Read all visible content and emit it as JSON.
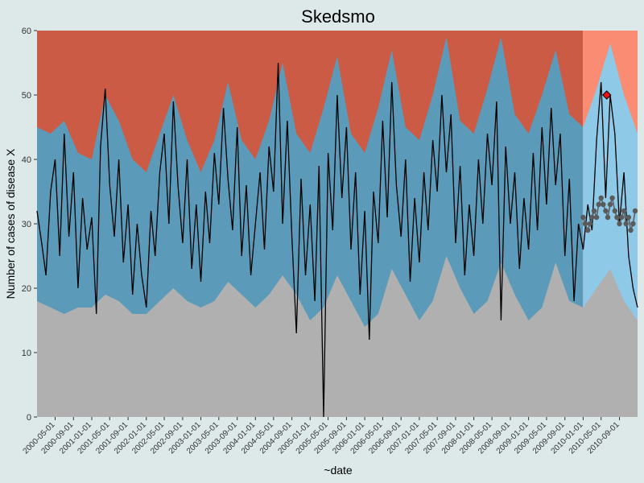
{
  "chart_data": {
    "type": "area",
    "title": "Skedsmo",
    "xlabel": "~date",
    "ylabel": "Number of cases of disease X",
    "ylim": [
      0,
      60
    ],
    "y_ticks": [
      0,
      10,
      20,
      30,
      40,
      50,
      60
    ],
    "x_range": [
      "2000-01-01",
      "2010-12-31"
    ],
    "x_tick_labels": [
      "2000-05-01",
      "2000-09-01",
      "2001-01-01",
      "2001-05-01",
      "2001-09-01",
      "2002-01-01",
      "2002-05-01",
      "2002-09-01",
      "2003-01-01",
      "2003-05-01",
      "2003-09-01",
      "2004-01-01",
      "2004-05-01",
      "2004-09-01",
      "2005-01-01",
      "2005-05-01",
      "2005-09-01",
      "2006-01-01",
      "2006-05-01",
      "2006-09-01",
      "2007-01-01",
      "2007-05-01",
      "2007-09-01",
      "2008-01-01",
      "2008-05-01",
      "2008-09-01",
      "2009-01-01",
      "2009-05-01",
      "2009-09-01",
      "2010-01-01",
      "2010-05-01",
      "2010-09-01"
    ],
    "baseline_end": "2009-12-31",
    "grid": false,
    "legend": "none",
    "colors": {
      "upper_band": "#cb5b45",
      "upper_band_current": "#fa8c74",
      "normal_band": "#5b9ab8",
      "normal_band_current": "#8ec9e8",
      "lower_band": "#b0b0b0",
      "observed_line": "#000000",
      "expected_points": "#5a5a5a",
      "alert_point": "#ee1111"
    },
    "bands": {
      "lower_threshold": [
        {
          "x": "2000-01-01",
          "y": 18
        },
        {
          "x": "2000-04-01",
          "y": 17
        },
        {
          "x": "2000-07-01",
          "y": 16
        },
        {
          "x": "2000-10-01",
          "y": 17
        },
        {
          "x": "2001-01-01",
          "y": 17
        },
        {
          "x": "2001-04-01",
          "y": 19
        },
        {
          "x": "2001-07-01",
          "y": 18
        },
        {
          "x": "2001-10-01",
          "y": 16
        },
        {
          "x": "2002-01-01",
          "y": 16
        },
        {
          "x": "2002-04-01",
          "y": 18
        },
        {
          "x": "2002-07-01",
          "y": 20
        },
        {
          "x": "2002-10-01",
          "y": 18
        },
        {
          "x": "2003-01-01",
          "y": 17
        },
        {
          "x": "2003-04-01",
          "y": 18
        },
        {
          "x": "2003-07-01",
          "y": 21
        },
        {
          "x": "2003-10-01",
          "y": 19
        },
        {
          "x": "2004-01-01",
          "y": 17
        },
        {
          "x": "2004-04-01",
          "y": 19
        },
        {
          "x": "2004-07-01",
          "y": 22
        },
        {
          "x": "2004-10-01",
          "y": 19
        },
        {
          "x": "2005-01-01",
          "y": 15
        },
        {
          "x": "2005-04-01",
          "y": 17
        },
        {
          "x": "2005-07-01",
          "y": 22
        },
        {
          "x": "2005-10-01",
          "y": 18
        },
        {
          "x": "2006-01-01",
          "y": 14
        },
        {
          "x": "2006-04-01",
          "y": 16
        },
        {
          "x": "2006-07-01",
          "y": 23
        },
        {
          "x": "2006-10-01",
          "y": 19
        },
        {
          "x": "2007-01-01",
          "y": 15
        },
        {
          "x": "2007-04-01",
          "y": 18
        },
        {
          "x": "2007-07-01",
          "y": 25
        },
        {
          "x": "2007-10-01",
          "y": 20
        },
        {
          "x": "2008-01-01",
          "y": 16
        },
        {
          "x": "2008-04-01",
          "y": 18
        },
        {
          "x": "2008-07-01",
          "y": 24
        },
        {
          "x": "2008-10-01",
          "y": 19
        },
        {
          "x": "2009-01-01",
          "y": 15
        },
        {
          "x": "2009-04-01",
          "y": 17
        },
        {
          "x": "2009-07-01",
          "y": 24
        },
        {
          "x": "2009-10-01",
          "y": 18
        },
        {
          "x": "2010-01-01",
          "y": 17
        },
        {
          "x": "2010-04-01",
          "y": 20
        },
        {
          "x": "2010-07-01",
          "y": 23
        },
        {
          "x": "2010-10-01",
          "y": 18
        },
        {
          "x": "2010-12-31",
          "y": 15
        }
      ],
      "upper_threshold": [
        {
          "x": "2000-01-01",
          "y": 45
        },
        {
          "x": "2000-04-01",
          "y": 44
        },
        {
          "x": "2000-07-01",
          "y": 46
        },
        {
          "x": "2000-10-01",
          "y": 41
        },
        {
          "x": "2001-01-01",
          "y": 40
        },
        {
          "x": "2001-04-01",
          "y": 50
        },
        {
          "x": "2001-07-01",
          "y": 46
        },
        {
          "x": "2001-10-01",
          "y": 40
        },
        {
          "x": "2002-01-01",
          "y": 38
        },
        {
          "x": "2002-04-01",
          "y": 44
        },
        {
          "x": "2002-07-01",
          "y": 50
        },
        {
          "x": "2002-10-01",
          "y": 43
        },
        {
          "x": "2003-01-01",
          "y": 38
        },
        {
          "x": "2003-04-01",
          "y": 43
        },
        {
          "x": "2003-07-01",
          "y": 52
        },
        {
          "x": "2003-10-01",
          "y": 43
        },
        {
          "x": "2004-01-01",
          "y": 40
        },
        {
          "x": "2004-04-01",
          "y": 46
        },
        {
          "x": "2004-07-01",
          "y": 55
        },
        {
          "x": "2004-10-01",
          "y": 44
        },
        {
          "x": "2005-01-01",
          "y": 41
        },
        {
          "x": "2005-04-01",
          "y": 48
        },
        {
          "x": "2005-07-01",
          "y": 56
        },
        {
          "x": "2005-10-01",
          "y": 44
        },
        {
          "x": "2006-01-01",
          "y": 41
        },
        {
          "x": "2006-04-01",
          "y": 48
        },
        {
          "x": "2006-07-01",
          "y": 57
        },
        {
          "x": "2006-10-01",
          "y": 45
        },
        {
          "x": "2007-01-01",
          "y": 43
        },
        {
          "x": "2007-04-01",
          "y": 50
        },
        {
          "x": "2007-07-01",
          "y": 59
        },
        {
          "x": "2007-10-01",
          "y": 46
        },
        {
          "x": "2008-01-01",
          "y": 44
        },
        {
          "x": "2008-04-01",
          "y": 51
        },
        {
          "x": "2008-07-01",
          "y": 59
        },
        {
          "x": "2008-10-01",
          "y": 47
        },
        {
          "x": "2009-01-01",
          "y": 44
        },
        {
          "x": "2009-04-01",
          "y": 50
        },
        {
          "x": "2009-07-01",
          "y": 57
        },
        {
          "x": "2009-10-01",
          "y": 47
        },
        {
          "x": "2010-01-01",
          "y": 45
        },
        {
          "x": "2010-04-01",
          "y": 51
        },
        {
          "x": "2010-07-01",
          "y": 58
        },
        {
          "x": "2010-10-01",
          "y": 50
        },
        {
          "x": "2010-12-31",
          "y": 44
        }
      ]
    },
    "series": [
      {
        "name": "",
        "role": "observed",
        "points": [
          {
            "x": "2000-01-01",
            "y": 32
          },
          {
            "x": "2000-02-01",
            "y": 27
          },
          {
            "x": "2000-03-01",
            "y": 22
          },
          {
            "x": "2000-04-01",
            "y": 35
          },
          {
            "x": "2000-05-01",
            "y": 40
          },
          {
            "x": "2000-06-01",
            "y": 25
          },
          {
            "x": "2000-07-01",
            "y": 44
          },
          {
            "x": "2000-08-01",
            "y": 28
          },
          {
            "x": "2000-09-01",
            "y": 38
          },
          {
            "x": "2000-10-01",
            "y": 20
          },
          {
            "x": "2000-11-01",
            "y": 34
          },
          {
            "x": "2000-12-01",
            "y": 26
          },
          {
            "x": "2001-01-01",
            "y": 31
          },
          {
            "x": "2001-02-01",
            "y": 16
          },
          {
            "x": "2001-03-01",
            "y": 42
          },
          {
            "x": "2001-04-01",
            "y": 51
          },
          {
            "x": "2001-05-01",
            "y": 36
          },
          {
            "x": "2001-06-01",
            "y": 28
          },
          {
            "x": "2001-07-01",
            "y": 40
          },
          {
            "x": "2001-08-01",
            "y": 24
          },
          {
            "x": "2001-09-01",
            "y": 33
          },
          {
            "x": "2001-10-01",
            "y": 19
          },
          {
            "x": "2001-11-01",
            "y": 30
          },
          {
            "x": "2001-12-01",
            "y": 22
          },
          {
            "x": "2002-01-01",
            "y": 17
          },
          {
            "x": "2002-02-01",
            "y": 32
          },
          {
            "x": "2002-03-01",
            "y": 25
          },
          {
            "x": "2002-04-01",
            "y": 38
          },
          {
            "x": "2002-05-01",
            "y": 44
          },
          {
            "x": "2002-06-01",
            "y": 30
          },
          {
            "x": "2002-07-01",
            "y": 49
          },
          {
            "x": "2002-08-01",
            "y": 36
          },
          {
            "x": "2002-09-01",
            "y": 27
          },
          {
            "x": "2002-10-01",
            "y": 40
          },
          {
            "x": "2002-11-01",
            "y": 23
          },
          {
            "x": "2002-12-01",
            "y": 33
          },
          {
            "x": "2003-01-01",
            "y": 21
          },
          {
            "x": "2003-02-01",
            "y": 35
          },
          {
            "x": "2003-03-01",
            "y": 27
          },
          {
            "x": "2003-04-01",
            "y": 41
          },
          {
            "x": "2003-05-01",
            "y": 33
          },
          {
            "x": "2003-06-01",
            "y": 48
          },
          {
            "x": "2003-07-01",
            "y": 37
          },
          {
            "x": "2003-08-01",
            "y": 29
          },
          {
            "x": "2003-09-01",
            "y": 45
          },
          {
            "x": "2003-10-01",
            "y": 25
          },
          {
            "x": "2003-11-01",
            "y": 36
          },
          {
            "x": "2003-12-01",
            "y": 22
          },
          {
            "x": "2004-01-01",
            "y": 30
          },
          {
            "x": "2004-02-01",
            "y": 38
          },
          {
            "x": "2004-03-01",
            "y": 26
          },
          {
            "x": "2004-04-01",
            "y": 42
          },
          {
            "x": "2004-05-01",
            "y": 35
          },
          {
            "x": "2004-06-01",
            "y": 55
          },
          {
            "x": "2004-07-01",
            "y": 30
          },
          {
            "x": "2004-08-01",
            "y": 46
          },
          {
            "x": "2004-09-01",
            "y": 28
          },
          {
            "x": "2004-10-01",
            "y": 13
          },
          {
            "x": "2004-11-01",
            "y": 37
          },
          {
            "x": "2004-12-01",
            "y": 22
          },
          {
            "x": "2005-01-01",
            "y": 33
          },
          {
            "x": "2005-02-01",
            "y": 18
          },
          {
            "x": "2005-03-01",
            "y": 39
          },
          {
            "x": "2005-04-01",
            "y": 0
          },
          {
            "x": "2005-05-01",
            "y": 41
          },
          {
            "x": "2005-06-01",
            "y": 29
          },
          {
            "x": "2005-07-01",
            "y": 50
          },
          {
            "x": "2005-08-01",
            "y": 34
          },
          {
            "x": "2005-09-01",
            "y": 45
          },
          {
            "x": "2005-10-01",
            "y": 26
          },
          {
            "x": "2005-11-01",
            "y": 38
          },
          {
            "x": "2005-12-01",
            "y": 19
          },
          {
            "x": "2006-01-01",
            "y": 32
          },
          {
            "x": "2006-02-01",
            "y": 12
          },
          {
            "x": "2006-03-01",
            "y": 35
          },
          {
            "x": "2006-04-01",
            "y": 27
          },
          {
            "x": "2006-05-01",
            "y": 46
          },
          {
            "x": "2006-06-01",
            "y": 31
          },
          {
            "x": "2006-07-01",
            "y": 52
          },
          {
            "x": "2006-08-01",
            "y": 36
          },
          {
            "x": "2006-09-01",
            "y": 28
          },
          {
            "x": "2006-10-01",
            "y": 40
          },
          {
            "x": "2006-11-01",
            "y": 21
          },
          {
            "x": "2006-12-01",
            "y": 34
          },
          {
            "x": "2007-01-01",
            "y": 24
          },
          {
            "x": "2007-02-01",
            "y": 38
          },
          {
            "x": "2007-03-01",
            "y": 29
          },
          {
            "x": "2007-04-01",
            "y": 43
          },
          {
            "x": "2007-05-01",
            "y": 35
          },
          {
            "x": "2007-06-01",
            "y": 50
          },
          {
            "x": "2007-07-01",
            "y": 38
          },
          {
            "x": "2007-08-01",
            "y": 47
          },
          {
            "x": "2007-09-01",
            "y": 27
          },
          {
            "x": "2007-10-01",
            "y": 39
          },
          {
            "x": "2007-11-01",
            "y": 22
          },
          {
            "x": "2007-12-01",
            "y": 33
          },
          {
            "x": "2008-01-01",
            "y": 25
          },
          {
            "x": "2008-02-01",
            "y": 40
          },
          {
            "x": "2008-03-01",
            "y": 30
          },
          {
            "x": "2008-04-01",
            "y": 44
          },
          {
            "x": "2008-05-01",
            "y": 36
          },
          {
            "x": "2008-06-01",
            "y": 49
          },
          {
            "x": "2008-07-01",
            "y": 15
          },
          {
            "x": "2008-08-01",
            "y": 42
          },
          {
            "x": "2008-09-01",
            "y": 30
          },
          {
            "x": "2008-10-01",
            "y": 38
          },
          {
            "x": "2008-11-01",
            "y": 23
          },
          {
            "x": "2008-12-01",
            "y": 34
          },
          {
            "x": "2009-01-01",
            "y": 26
          },
          {
            "x": "2009-02-01",
            "y": 41
          },
          {
            "x": "2009-03-01",
            "y": 29
          },
          {
            "x": "2009-04-01",
            "y": 45
          },
          {
            "x": "2009-05-01",
            "y": 33
          },
          {
            "x": "2009-06-01",
            "y": 48
          },
          {
            "x": "2009-07-01",
            "y": 36
          },
          {
            "x": "2009-08-01",
            "y": 44
          },
          {
            "x": "2009-09-01",
            "y": 25
          },
          {
            "x": "2009-10-01",
            "y": 37
          },
          {
            "x": "2009-11-01",
            "y": 18
          },
          {
            "x": "2009-12-01",
            "y": 30
          },
          {
            "x": "2010-01-01",
            "y": 26
          },
          {
            "x": "2010-02-01",
            "y": 33
          },
          {
            "x": "2010-03-01",
            "y": 29
          },
          {
            "x": "2010-04-01",
            "y": 43
          },
          {
            "x": "2010-05-01",
            "y": 52
          },
          {
            "x": "2010-06-01",
            "y": 34
          },
          {
            "x": "2010-07-01",
            "y": 50
          },
          {
            "x": "2010-08-01",
            "y": 44
          },
          {
            "x": "2010-09-01",
            "y": 30
          },
          {
            "x": "2010-10-01",
            "y": 38
          },
          {
            "x": "2010-11-01",
            "y": 25
          },
          {
            "x": "2010-12-01",
            "y": 20
          },
          {
            "x": "2010-12-31",
            "y": 17
          }
        ]
      },
      {
        "name": "",
        "role": "expected",
        "points": [
          {
            "x": "2010-01-01",
            "y": 31
          },
          {
            "x": "2010-01-15",
            "y": 30
          },
          {
            "x": "2010-02-01",
            "y": 29
          },
          {
            "x": "2010-02-15",
            "y": 30
          },
          {
            "x": "2010-03-01",
            "y": 31
          },
          {
            "x": "2010-03-15",
            "y": 32
          },
          {
            "x": "2010-04-01",
            "y": 31
          },
          {
            "x": "2010-04-15",
            "y": 33
          },
          {
            "x": "2010-05-01",
            "y": 34
          },
          {
            "x": "2010-05-15",
            "y": 33
          },
          {
            "x": "2010-06-01",
            "y": 32
          },
          {
            "x": "2010-06-15",
            "y": 31
          },
          {
            "x": "2010-07-01",
            "y": 33
          },
          {
            "x": "2010-07-15",
            "y": 34
          },
          {
            "x": "2010-08-01",
            "y": 32
          },
          {
            "x": "2010-08-15",
            "y": 31
          },
          {
            "x": "2010-09-01",
            "y": 30
          },
          {
            "x": "2010-09-15",
            "y": 31
          },
          {
            "x": "2010-10-01",
            "y": 32
          },
          {
            "x": "2010-10-15",
            "y": 30
          },
          {
            "x": "2010-11-01",
            "y": 31
          },
          {
            "x": "2010-11-15",
            "y": 29
          },
          {
            "x": "2010-12-01",
            "y": 30
          },
          {
            "x": "2010-12-15",
            "y": 32
          }
        ]
      }
    ],
    "alerts": [
      {
        "x": "2010-06-08",
        "y": 50
      }
    ]
  }
}
